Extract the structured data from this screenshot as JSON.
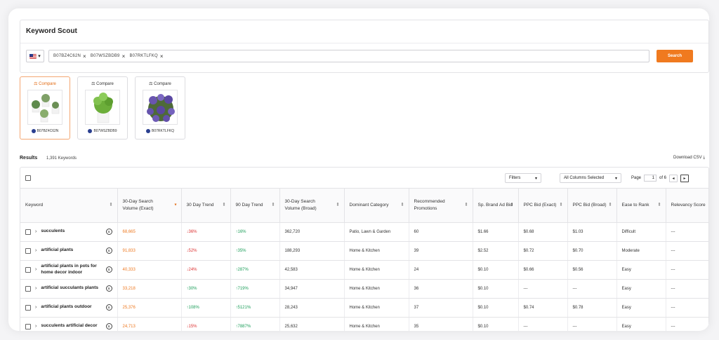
{
  "app": {
    "title": "Keyword Scout"
  },
  "search": {
    "chips": [
      "B07BZ4C62N",
      "B07WSZBDB9",
      "B07RKTLFKQ"
    ],
    "button": "Search"
  },
  "products": [
    {
      "compare": "Compare",
      "asin": "B07BZ4C62N",
      "active": true
    },
    {
      "compare": "Compare",
      "asin": "B07WSZBDB9",
      "active": false
    },
    {
      "compare": "Compare",
      "asin": "B07RKTLFKQ",
      "active": false
    }
  ],
  "results": {
    "title": "Results",
    "count": "1,391 Keywords",
    "download": "Download CSV"
  },
  "toolbar": {
    "filters": "Filters",
    "columns": "All Columns Selected",
    "page_label": "Page",
    "page_value": "1",
    "page_of": "of 6"
  },
  "table": {
    "headers": [
      "Keyword",
      "30-Day Search Volume (Exact)",
      "30 Day Trend",
      "90 Day Trend",
      "30-Day Search Volume (Broad)",
      "Dominant Category",
      "Recommended Promotions",
      "Sp. Brand Ad Bid",
      "PPC Bid (Exact)",
      "PPC Bid (Broad)",
      "Ease to Rank",
      "Relevancy Score"
    ],
    "rows": [
      {
        "keyword": "succulents",
        "exact": "68,665",
        "t30": "↓36%",
        "t30dir": "down",
        "t90": "↑16%",
        "t90dir": "up",
        "broad": "362,720",
        "category": "Patio, Lawn & Garden",
        "promo": "60",
        "sp": "$1.66",
        "ppce": "$0.68",
        "ppcb": "$1.03",
        "ease": "Difficult",
        "rel": "---"
      },
      {
        "keyword": "artificial plants",
        "exact": "91,833",
        "t30": "↓52%",
        "t30dir": "down",
        "t90": "↑35%",
        "t90dir": "up",
        "broad": "188,293",
        "category": "Home & Kitchen",
        "promo": "39",
        "sp": "$2.52",
        "ppce": "$0.72",
        "ppcb": "$0.70",
        "ease": "Moderate",
        "rel": "---"
      },
      {
        "keyword": "artificial plants in pots for home decor indoor",
        "exact": "40,333",
        "t30": "↓24%",
        "t30dir": "down",
        "t90": "↑287%",
        "t90dir": "up",
        "broad": "42,583",
        "category": "Home & Kitchen",
        "promo": "24",
        "sp": "$0.10",
        "ppce": "$0.66",
        "ppcb": "$0.56",
        "ease": "Easy",
        "rel": "---"
      },
      {
        "keyword": "artificial succulants plants",
        "exact": "33,218",
        "t30": "↑30%",
        "t30dir": "up",
        "t90": "↑719%",
        "t90dir": "up",
        "broad": "34,947",
        "category": "Home & Kitchen",
        "promo": "36",
        "sp": "$0.10",
        "ppce": "---",
        "ppcb": "---",
        "ease": "Easy",
        "rel": "---"
      },
      {
        "keyword": "artificial plants outdoor",
        "exact": "25,376",
        "t30": "↑108%",
        "t30dir": "up",
        "t90": "↑5121%",
        "t90dir": "up",
        "broad": "28,243",
        "category": "Home & Kitchen",
        "promo": "37",
        "sp": "$0.10",
        "ppce": "$0.74",
        "ppcb": "$0.78",
        "ease": "Easy",
        "rel": "---"
      },
      {
        "keyword": "succulents artificial decor",
        "exact": "24,713",
        "t30": "↓15%",
        "t30dir": "down",
        "t90": "↑7887%",
        "t90dir": "up",
        "broad": "25,632",
        "category": "Home & Kitchen",
        "promo": "35",
        "sp": "$0.10",
        "ppce": "---",
        "ppcb": "---",
        "ease": "Easy",
        "rel": "---"
      }
    ]
  },
  "colors": {
    "accent": "#f07a1f",
    "up": "#1c9e5a",
    "down": "#dd3333"
  }
}
